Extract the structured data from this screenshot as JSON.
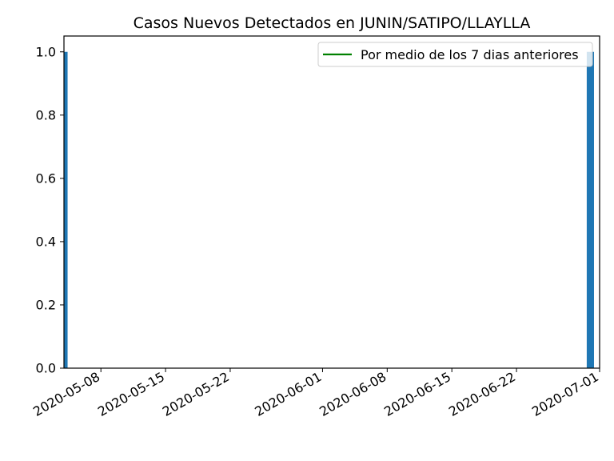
{
  "chart_data": {
    "type": "bar",
    "title": "Casos Nuevos Detectados en JUNIN/SATIPO/LLAYLLA",
    "xlabel": "",
    "ylabel": "",
    "x_type": "date",
    "xlim": [
      "2020-05-04",
      "2020-07-01"
    ],
    "ylim": [
      0,
      1.05
    ],
    "x_ticks": [
      "2020-05-08",
      "2020-05-15",
      "2020-05-22",
      "2020-06-01",
      "2020-06-08",
      "2020-06-15",
      "2020-06-22",
      "2020-07-01"
    ],
    "y_ticks": [
      "0.0",
      "0.2",
      "0.4",
      "0.6",
      "0.8",
      "1.0"
    ],
    "bars": [
      {
        "date": "2020-05-04",
        "value": 1
      },
      {
        "date": "2020-06-30",
        "value": 1
      }
    ],
    "bar_color": "#1f77b4",
    "line_series": {
      "name": "Por medio de los 7 dias anteriores",
      "color": "#008000",
      "values": []
    },
    "legend": {
      "placement": "top-right"
    },
    "grid": false
  }
}
